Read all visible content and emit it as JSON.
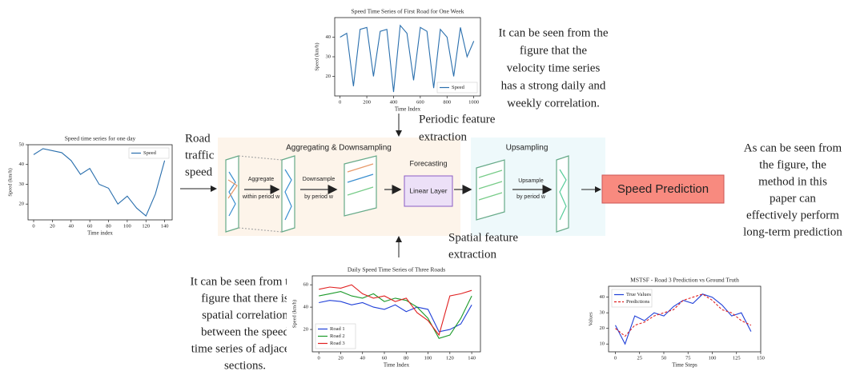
{
  "input_label": [
    "Road",
    "traffic",
    "speed"
  ],
  "periodic_label": [
    "Periodic feature",
    "extraction"
  ],
  "spatial_label": [
    "Spatial feature",
    "extraction"
  ],
  "top_note": [
    "It can be seen from the",
    "figure that the",
    "velocity time series",
    "has a strong daily and",
    "weekly correlation."
  ],
  "bottom_note": [
    "It can be seen from the",
    "figure that there is",
    "spatial correlation",
    "between the speed",
    "time series of adjacent",
    "sections."
  ],
  "right_note": [
    "As can be seen from",
    "the figure, the",
    "method in this",
    "paper can",
    "effectively perform",
    "long-term prediction"
  ],
  "model": {
    "downsampling_title": "Aggregating & Downsampling",
    "aggregate": [
      "Aggregate",
      "within period w"
    ],
    "downsample": [
      "Downsample",
      "by period w"
    ],
    "forecasting": "Forecasting",
    "linear_layer": "Linear Layer",
    "upsampling_title": "Upsampling",
    "upsample": [
      "Upsample",
      "by period w"
    ],
    "output": "Speed Prediction"
  },
  "charts": [
    {
      "title": "Speed Time Series of First Road for One Week",
      "xlabel": "Time Index",
      "ylabel": "Speed (km/h)",
      "xlim": [
        -40,
        1050
      ],
      "xticks": [
        0,
        200,
        400,
        600,
        800,
        1000
      ],
      "ylim": [
        10,
        50
      ],
      "yticks": [
        20,
        30,
        40
      ],
      "legend_loc": "lower right",
      "x": [
        0,
        50,
        100,
        150,
        200,
        250,
        300,
        350,
        400,
        450,
        500,
        550,
        600,
        650,
        700,
        750,
        800,
        850,
        900,
        950,
        1000
      ],
      "series": [
        {
          "name": "Speed",
          "color": "#2a6fad",
          "values": [
            40,
            42,
            15,
            44,
            45,
            20,
            43,
            44,
            12,
            46,
            42,
            18,
            45,
            43,
            14,
            44,
            40,
            20,
            45,
            30,
            38
          ]
        }
      ]
    },
    {
      "title": "Speed time series for one day",
      "xlabel": "Time index",
      "ylabel": "Speed (km/h)",
      "xlim": [
        -6,
        148
      ],
      "xticks": [
        0,
        20,
        40,
        60,
        80,
        100,
        120,
        140
      ],
      "ylim": [
        12,
        50
      ],
      "yticks": [
        20,
        30,
        40,
        50
      ],
      "legend_loc": "upper right",
      "x": [
        0,
        10,
        20,
        30,
        40,
        50,
        60,
        70,
        80,
        90,
        100,
        110,
        120,
        130,
        140
      ],
      "series": [
        {
          "name": "Speed",
          "color": "#2a6fad",
          "values": [
            45,
            48,
            47,
            46,
            42,
            35,
            38,
            30,
            28,
            20,
            24,
            18,
            14,
            25,
            42
          ]
        }
      ]
    },
    {
      "title": "Daily Speed Time Series of Three Roads",
      "xlabel": "Time Index",
      "ylabel": "Speed (km/h)",
      "xlim": [
        -6,
        148
      ],
      "xticks": [
        0,
        20,
        40,
        60,
        80,
        100,
        120,
        140
      ],
      "ylim": [
        0,
        68
      ],
      "yticks": [
        20,
        40,
        60
      ],
      "legend_loc": "lower left",
      "x": [
        0,
        10,
        20,
        30,
        40,
        50,
        60,
        70,
        80,
        90,
        100,
        110,
        120,
        130,
        140
      ],
      "series": [
        {
          "name": "Road 1",
          "color": "#1f3fd8",
          "values": [
            44,
            46,
            45,
            42,
            44,
            40,
            38,
            42,
            36,
            40,
            38,
            18,
            20,
            25,
            42
          ]
        },
        {
          "name": "Road 2",
          "color": "#1c9a2a",
          "values": [
            50,
            52,
            54,
            50,
            48,
            52,
            45,
            48,
            46,
            40,
            30,
            12,
            15,
            30,
            50
          ]
        },
        {
          "name": "Road 3",
          "color": "#e02020",
          "values": [
            56,
            58,
            57,
            60,
            52,
            48,
            50,
            45,
            48,
            35,
            28,
            15,
            50,
            52,
            55
          ]
        }
      ]
    },
    {
      "title": "MSTSF - Road 3 Prediction vs Ground Truth",
      "xlabel": "Time Steps",
      "ylabel": "Values",
      "xlim": [
        -7,
        150
      ],
      "xticks": [
        0,
        25,
        50,
        75,
        100,
        125,
        150
      ],
      "ylim": [
        5,
        47
      ],
      "yticks": [
        10,
        20,
        30,
        40
      ],
      "legend_loc": "upper left",
      "x": [
        0,
        10,
        20,
        30,
        40,
        50,
        60,
        70,
        80,
        90,
        100,
        110,
        120,
        130,
        140
      ],
      "series": [
        {
          "name": "True Values",
          "color": "#1f3fd8",
          "linestyle": "solid",
          "values": [
            22,
            10,
            28,
            25,
            30,
            28,
            34,
            38,
            36,
            42,
            40,
            35,
            28,
            30,
            18
          ]
        },
        {
          "name": "Predictions",
          "color": "#e02020",
          "linestyle": "dashed",
          "values": [
            20,
            15,
            22,
            24,
            28,
            30,
            32,
            38,
            40,
            42,
            38,
            32,
            30,
            25,
            22
          ]
        }
      ]
    }
  ]
}
